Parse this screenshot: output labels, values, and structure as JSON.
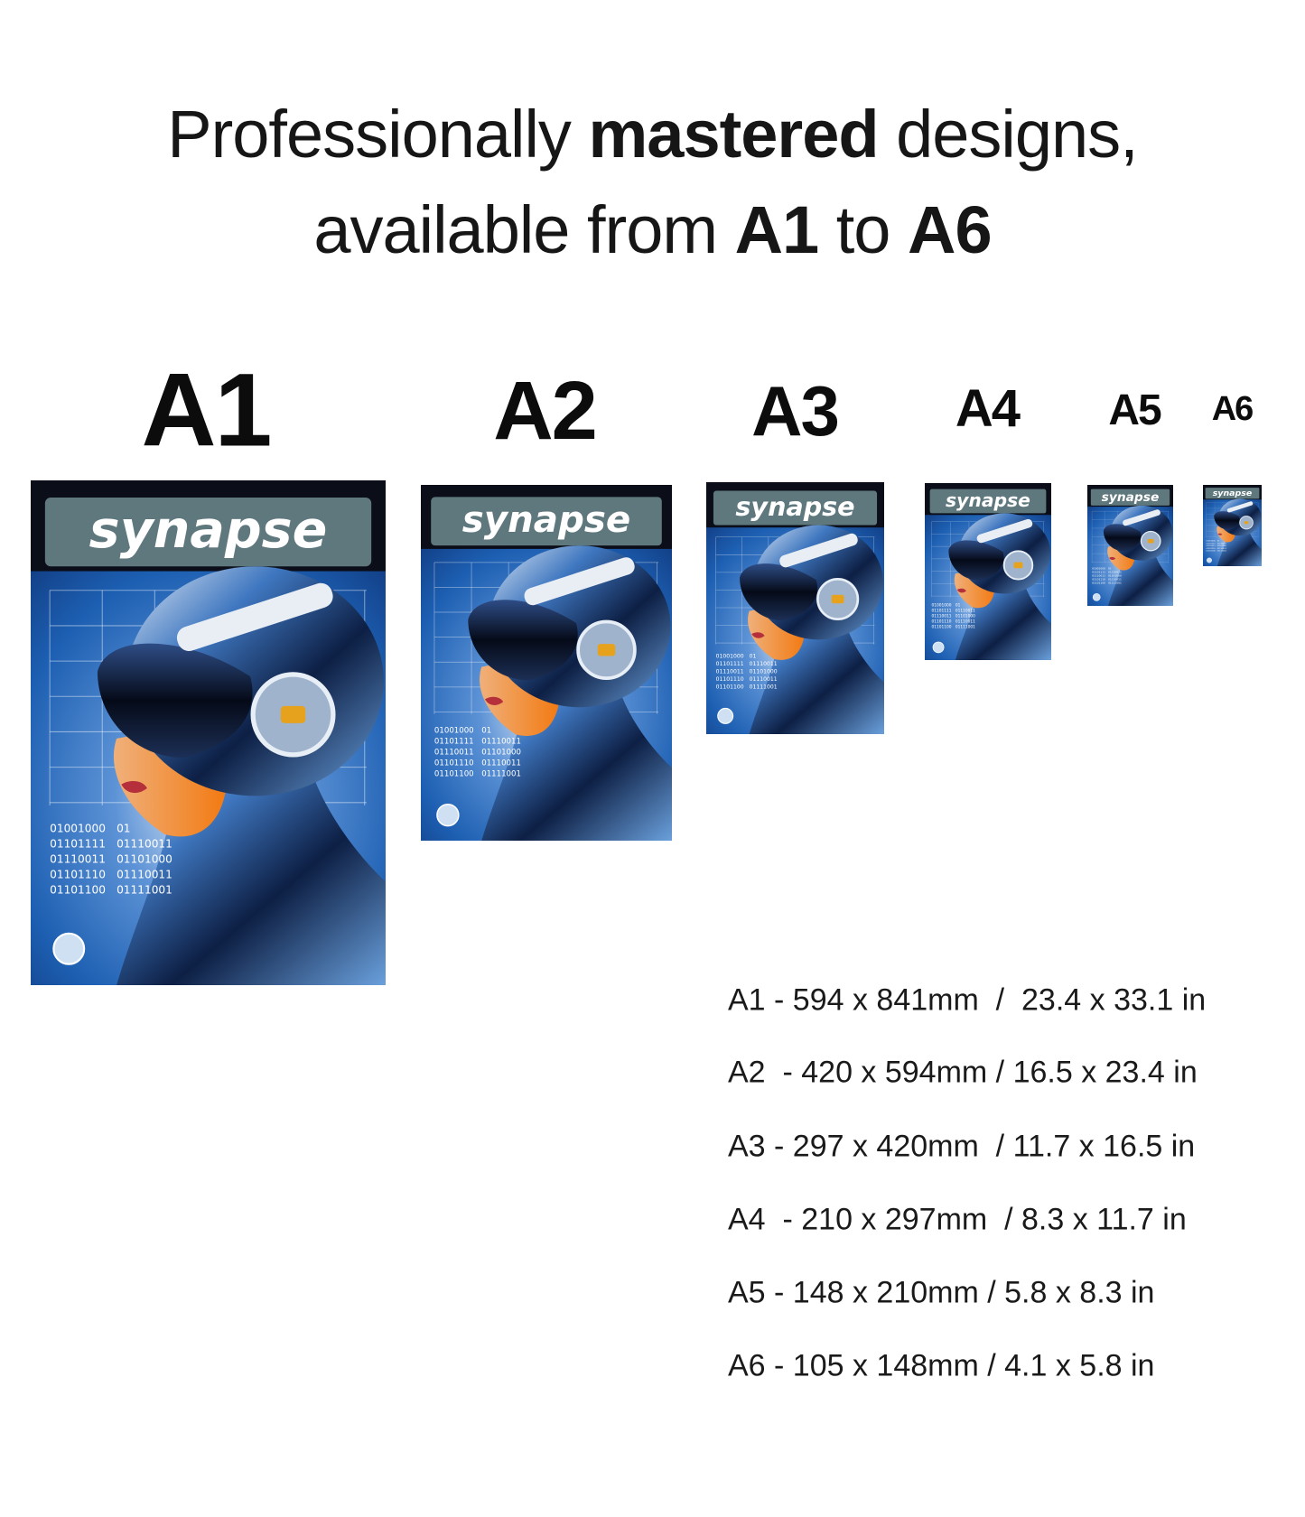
{
  "headline": {
    "line1": [
      "Professionally ",
      "mastered",
      " designs,"
    ],
    "line2": [
      "available from ",
      "A1",
      " to ",
      "A6"
    ]
  },
  "poster": {
    "title": "synapse",
    "binary": [
      [
        "01001000",
        "01101111",
        "01110011",
        "01101110",
        "01101100"
      ],
      [
        "01",
        "01110011",
        "01101000",
        "01110011",
        "01111001"
      ]
    ]
  },
  "size_labels": [
    "A1",
    "A2",
    "A3",
    "A4",
    "A5",
    "A6"
  ],
  "sizes": [
    "A1 - 594 x 841mm  /  23.4 x 33.1 in",
    "A2  - 420 x 594mm / 16.5 x 23.4 in",
    "A3 - 297 x 420mm  / 11.7 x 16.5 in",
    "A4  - 210 x 297mm  / 8.3 x 11.7 in",
    "A5 - 148 x 210mm / 5.8 x 8.3 in",
    "A6 - 105 x 148mm / 4.1 x 5.8 in"
  ]
}
